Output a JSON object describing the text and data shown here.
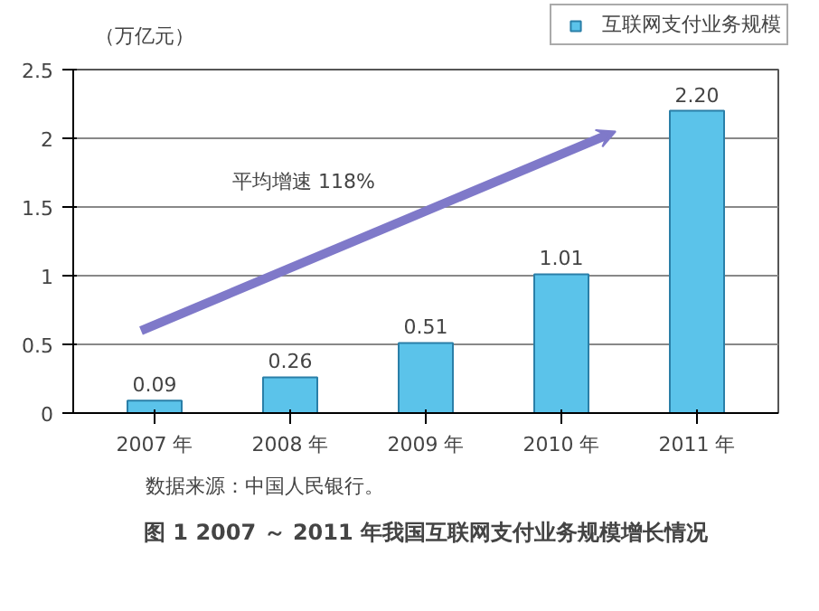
{
  "chart_data": {
    "type": "bar",
    "title": "图 1 2007 ～ 2011 年我国互联网支付业务规模增长情况",
    "ylabel": "（万亿元）",
    "categories": [
      "2007 年",
      "2008 年",
      "2009 年",
      "2010 年",
      "2011 年"
    ],
    "series": [
      {
        "name": "互联网支付业务规模",
        "color": "#5bc3ea",
        "values": [
          0.09,
          0.26,
          0.51,
          1.01,
          2.2
        ]
      }
    ],
    "value_labels": [
      "0.09",
      "0.26",
      "0.51",
      "1.01",
      "2.20"
    ],
    "ylim": [
      0,
      2.5
    ],
    "yticks": [
      0,
      0.5,
      1,
      1.5,
      2,
      2.5
    ],
    "grid": "y",
    "legend": "top right",
    "annotations": [
      "平均增速 118%",
      "数据来源：中国人民银行。"
    ]
  }
}
